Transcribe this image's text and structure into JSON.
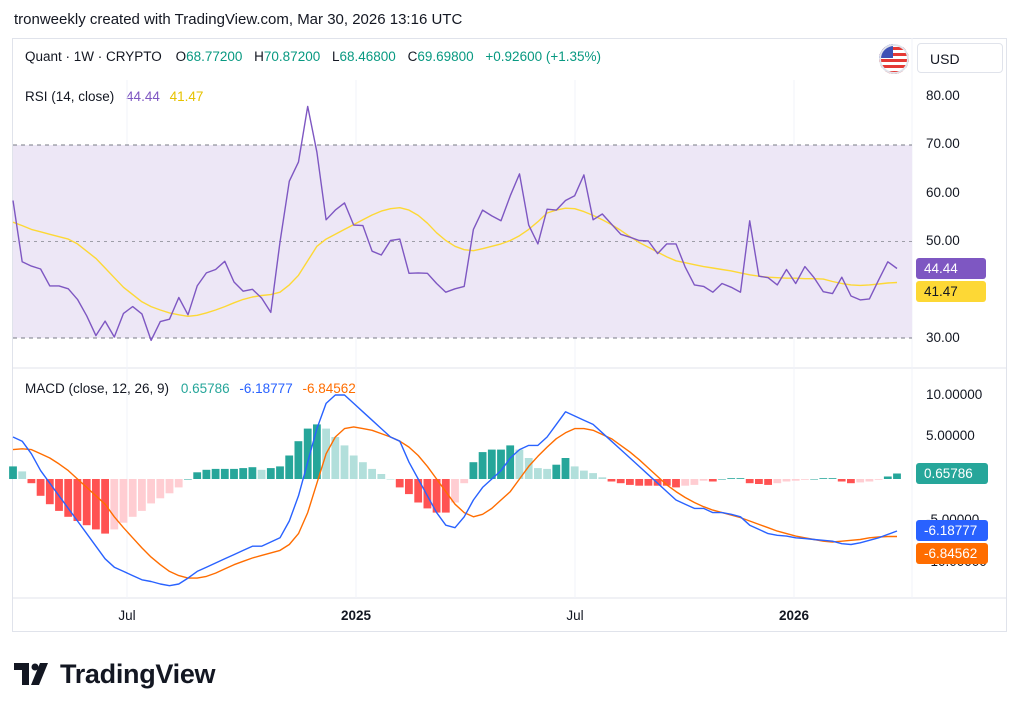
{
  "caption": "tronweekly created with TradingView.com, Mar 30, 2026 13:16 UTC",
  "header": {
    "symbol": "Quant · 1W · CRYPTO",
    "open_label": "O",
    "open": "68.77200",
    "high_label": "H",
    "high": "70.87200",
    "low_label": "L",
    "low": "68.46800",
    "close_label": "C",
    "close": "69.69800",
    "change": "+0.92600 (+1.35%)",
    "currency": "USD"
  },
  "colors": {
    "rsi": "#7e57c2",
    "rsi_ma": "#fdd835",
    "rsi_band": "#ede7f6",
    "macd": "#2962ff",
    "signal": "#ff6d00",
    "hist_up_strong": "#26a69a",
    "hist_up_weak": "#b2dfdb",
    "hist_down_strong": "#ff5252",
    "hist_down_weak": "#ffcdd2",
    "ohlc_green": "#089981"
  },
  "rsi_panel": {
    "title": "RSI (14, close)",
    "rsi_value": "44.44",
    "ma_value": "41.47",
    "axis_ticks": [
      "80.00",
      "70.00",
      "60.00",
      "50.00",
      "30.00"
    ]
  },
  "macd_panel": {
    "title": "MACD (close, 12, 26, 9)",
    "hist_value": "0.65786",
    "macd_value": "-6.18777",
    "signal_value": "-6.84562",
    "axis_ticks": [
      "10.00000",
      "5.00000",
      "-5.00000",
      "-10.00000"
    ]
  },
  "time_axis": [
    "Jul",
    "2025",
    "Jul",
    "2026"
  ],
  "brand": "TradingView",
  "chart_data": [
    {
      "type": "line",
      "title": "RSI (14, close)",
      "ylim": [
        27.5,
        82.5
      ],
      "series": [
        {
          "name": "RSI",
          "values": [
            58.5,
            45.8,
            44.9,
            44.3,
            40.8,
            40.8,
            40.2,
            38,
            34.6,
            30.5,
            33.5,
            30.2,
            35.1,
            36.5,
            35,
            29.5,
            33.4,
            33.9,
            38.4,
            34.8,
            40.8,
            43.5,
            44.2,
            45.9,
            41.6,
            39.7,
            40.1,
            38.3,
            35.3,
            49.9,
            62.5,
            66.5,
            78,
            68.5,
            54.5,
            56.5,
            58,
            53.4,
            53.3,
            48,
            47.2,
            50.2,
            50.5,
            43.4,
            43.5,
            43.4,
            41.3,
            39.5,
            40.2,
            40.7,
            52.5,
            56.5,
            55.3,
            54.3,
            59.5,
            64,
            53.4,
            49.5,
            56.7,
            56.5,
            58.5,
            59.5,
            63.8,
            54.5,
            55.7,
            53.6,
            51.5,
            50.9,
            50.2,
            50.1,
            47.5,
            49.5,
            49.5,
            44.7,
            41,
            40.7,
            39.5,
            41.3,
            40.5,
            39.5,
            54.3,
            42.8,
            42.5,
            41,
            44.2,
            41.3,
            44.8,
            42.5,
            39.6,
            39.2,
            42.6,
            38.7,
            37.9,
            38.1,
            42,
            45.8,
            44.4
          ]
        },
        {
          "name": "RSI MA",
          "values": [
            54,
            53.3,
            52.5,
            52,
            51.5,
            51,
            50.5,
            49.5,
            48,
            46.5,
            44.5,
            42.5,
            40.5,
            39,
            37.5,
            36.5,
            35.8,
            35.2,
            34.8,
            34.5,
            34.7,
            35.2,
            35.8,
            36.5,
            37.3,
            38,
            38.5,
            38.8,
            39,
            39.5,
            41,
            43,
            46,
            49,
            50.5,
            51.5,
            52.5,
            53.5,
            54.5,
            55.5,
            56.3,
            56.8,
            57,
            56.5,
            55.4,
            53.8,
            51.8,
            50.2,
            49,
            48.3,
            48.1,
            48.5,
            49,
            49.5,
            50.2,
            51.2,
            52.5,
            54.1,
            55.9,
            56.5,
            56.9,
            56.8,
            56.2,
            55.4,
            54.5,
            53.5,
            52.3,
            51,
            49.8,
            48.8,
            47.8,
            46.8,
            46,
            45.6,
            45.2,
            44.8,
            44.5,
            44.2,
            43.9,
            43.5,
            43.1,
            42.8,
            42.6,
            42.5,
            42.4,
            42.4,
            42.3,
            42.3,
            42.2,
            41.7,
            41.3,
            41.0,
            40.9,
            41.0,
            41.2,
            41.4,
            41.5
          ]
        }
      ]
    },
    {
      "type": "bar",
      "title": "MACD (close, 12, 26, 9)",
      "ylim": [
        -13.5,
        11
      ],
      "series": [
        {
          "name": "MACD",
          "values": [
            5,
            4.5,
            3,
            1,
            -0.5,
            -2,
            -3.5,
            -5,
            -6.5,
            -8,
            -9.5,
            -10.5,
            -11,
            -11.5,
            -12,
            -12.2,
            -12.5,
            -12.7,
            -12.5,
            -11.8,
            -11,
            -10.5,
            -10,
            -9.5,
            -9,
            -8.5,
            -8,
            -8,
            -7.5,
            -7,
            -5,
            -2,
            2,
            6,
            9,
            10,
            10,
            9,
            8,
            7,
            6,
            5,
            4.5,
            2,
            0,
            -2,
            -4,
            -5.5,
            -5.8,
            -4.5,
            -2.5,
            -1,
            0,
            1,
            2.5,
            3.5,
            4,
            4,
            5,
            6.5,
            8,
            7.5,
            7,
            6.5,
            5.5,
            4.5,
            3.5,
            2.5,
            1.5,
            0.5,
            -0.5,
            -1.5,
            -2.5,
            -3,
            -3.5,
            -3.5,
            -4,
            -4,
            -4.2,
            -4.5,
            -5.5,
            -6,
            -6.5,
            -6.7,
            -6.8,
            -7,
            -7.1,
            -7.2,
            -7.3,
            -7.4,
            -7.7,
            -7.8,
            -7.6,
            -7.3,
            -7,
            -6.6,
            -6.19
          ]
        },
        {
          "name": "Signal",
          "values": [
            3.5,
            3.6,
            3.5,
            3,
            2.5,
            1.8,
            1,
            0,
            -1,
            -2,
            -3,
            -4.5,
            -5.8,
            -7,
            -8.2,
            -9.3,
            -10.2,
            -11,
            -11.5,
            -11.8,
            -11.8,
            -11.6,
            -11.2,
            -10.7,
            -10.2,
            -9.8,
            -9.4,
            -9.1,
            -8.8,
            -8.5,
            -7.8,
            -6.5,
            -4,
            -0.5,
            3,
            5,
            6,
            6.2,
            6,
            5.8,
            5.4,
            5,
            4.5,
            3.8,
            2.8,
            1.5,
            0,
            -1.5,
            -3,
            -4,
            -4.5,
            -4.2,
            -3.5,
            -2.5,
            -1.5,
            0,
            1.5,
            2.7,
            3.8,
            4.8,
            5.5,
            6,
            6,
            5.8,
            5.3,
            4.8,
            4,
            3.2,
            2.3,
            1.3,
            0.3,
            -0.7,
            -1.5,
            -2.2,
            -2.8,
            -3.3,
            -3.7,
            -4,
            -4.3,
            -4.6,
            -5,
            -5.4,
            -5.8,
            -6.2,
            -6.5,
            -6.8,
            -7,
            -7.2,
            -7.4,
            -7.5,
            -7.4,
            -7.3,
            -7.2,
            -7.0,
            -6.9,
            -6.85,
            -6.85
          ]
        },
        {
          "name": "Histogram",
          "values": [
            1.5,
            0.9,
            -0.5,
            -2,
            -3,
            -3.8,
            -4.5,
            -5,
            -5.5,
            -6,
            -6.5,
            -6,
            -5.2,
            -4.5,
            -3.8,
            -2.9,
            -2.3,
            -1.7,
            -1,
            0,
            0.8,
            1.1,
            1.2,
            1.2,
            1.2,
            1.3,
            1.4,
            1.1,
            1.3,
            1.5,
            2.8,
            4.5,
            6,
            6.5,
            6,
            5,
            4,
            2.8,
            2,
            1.2,
            0.6,
            0,
            -1,
            -1.8,
            -2.8,
            -3.5,
            -4,
            -4,
            -2.8,
            -0.5,
            2,
            3.2,
            3.5,
            3.5,
            4,
            3.5,
            2.5,
            1.3,
            1.2,
            1.7,
            2.5,
            1.5,
            1,
            0.7,
            0.2,
            -0.3,
            -0.5,
            -0.7,
            -0.8,
            -0.8,
            -0.8,
            -0.8,
            -1,
            -0.8,
            -0.7,
            -0.2,
            -0.3,
            0,
            0.1,
            0.1,
            -0.5,
            -0.6,
            -0.7,
            -0.5,
            -0.3,
            -0.2,
            -0.1,
            0,
            0.1,
            0.1,
            -0.3,
            -0.5,
            -0.4,
            -0.3,
            -0.1,
            0.3,
            0.66
          ]
        }
      ]
    }
  ]
}
